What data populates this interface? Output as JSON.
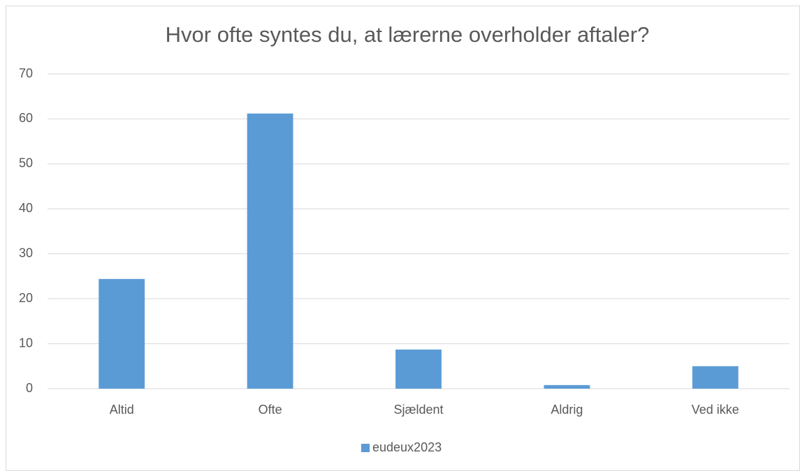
{
  "chart_data": {
    "type": "bar",
    "title": "Hvor ofte syntes du, at lærerne overholder aftaler?",
    "categories": [
      "Altid",
      "Ofte",
      "Sjældent",
      "Aldrig",
      "Ved ikke"
    ],
    "series": [
      {
        "name": "eudeux2023",
        "color": "#5b9bd5",
        "values": [
          24.4,
          61.2,
          8.7,
          0.8,
          5.0
        ]
      }
    ],
    "ylim": [
      0,
      70
    ],
    "yticks": [
      0,
      10,
      20,
      30,
      40,
      50,
      60,
      70
    ],
    "grid": true,
    "legend": "bottom"
  }
}
